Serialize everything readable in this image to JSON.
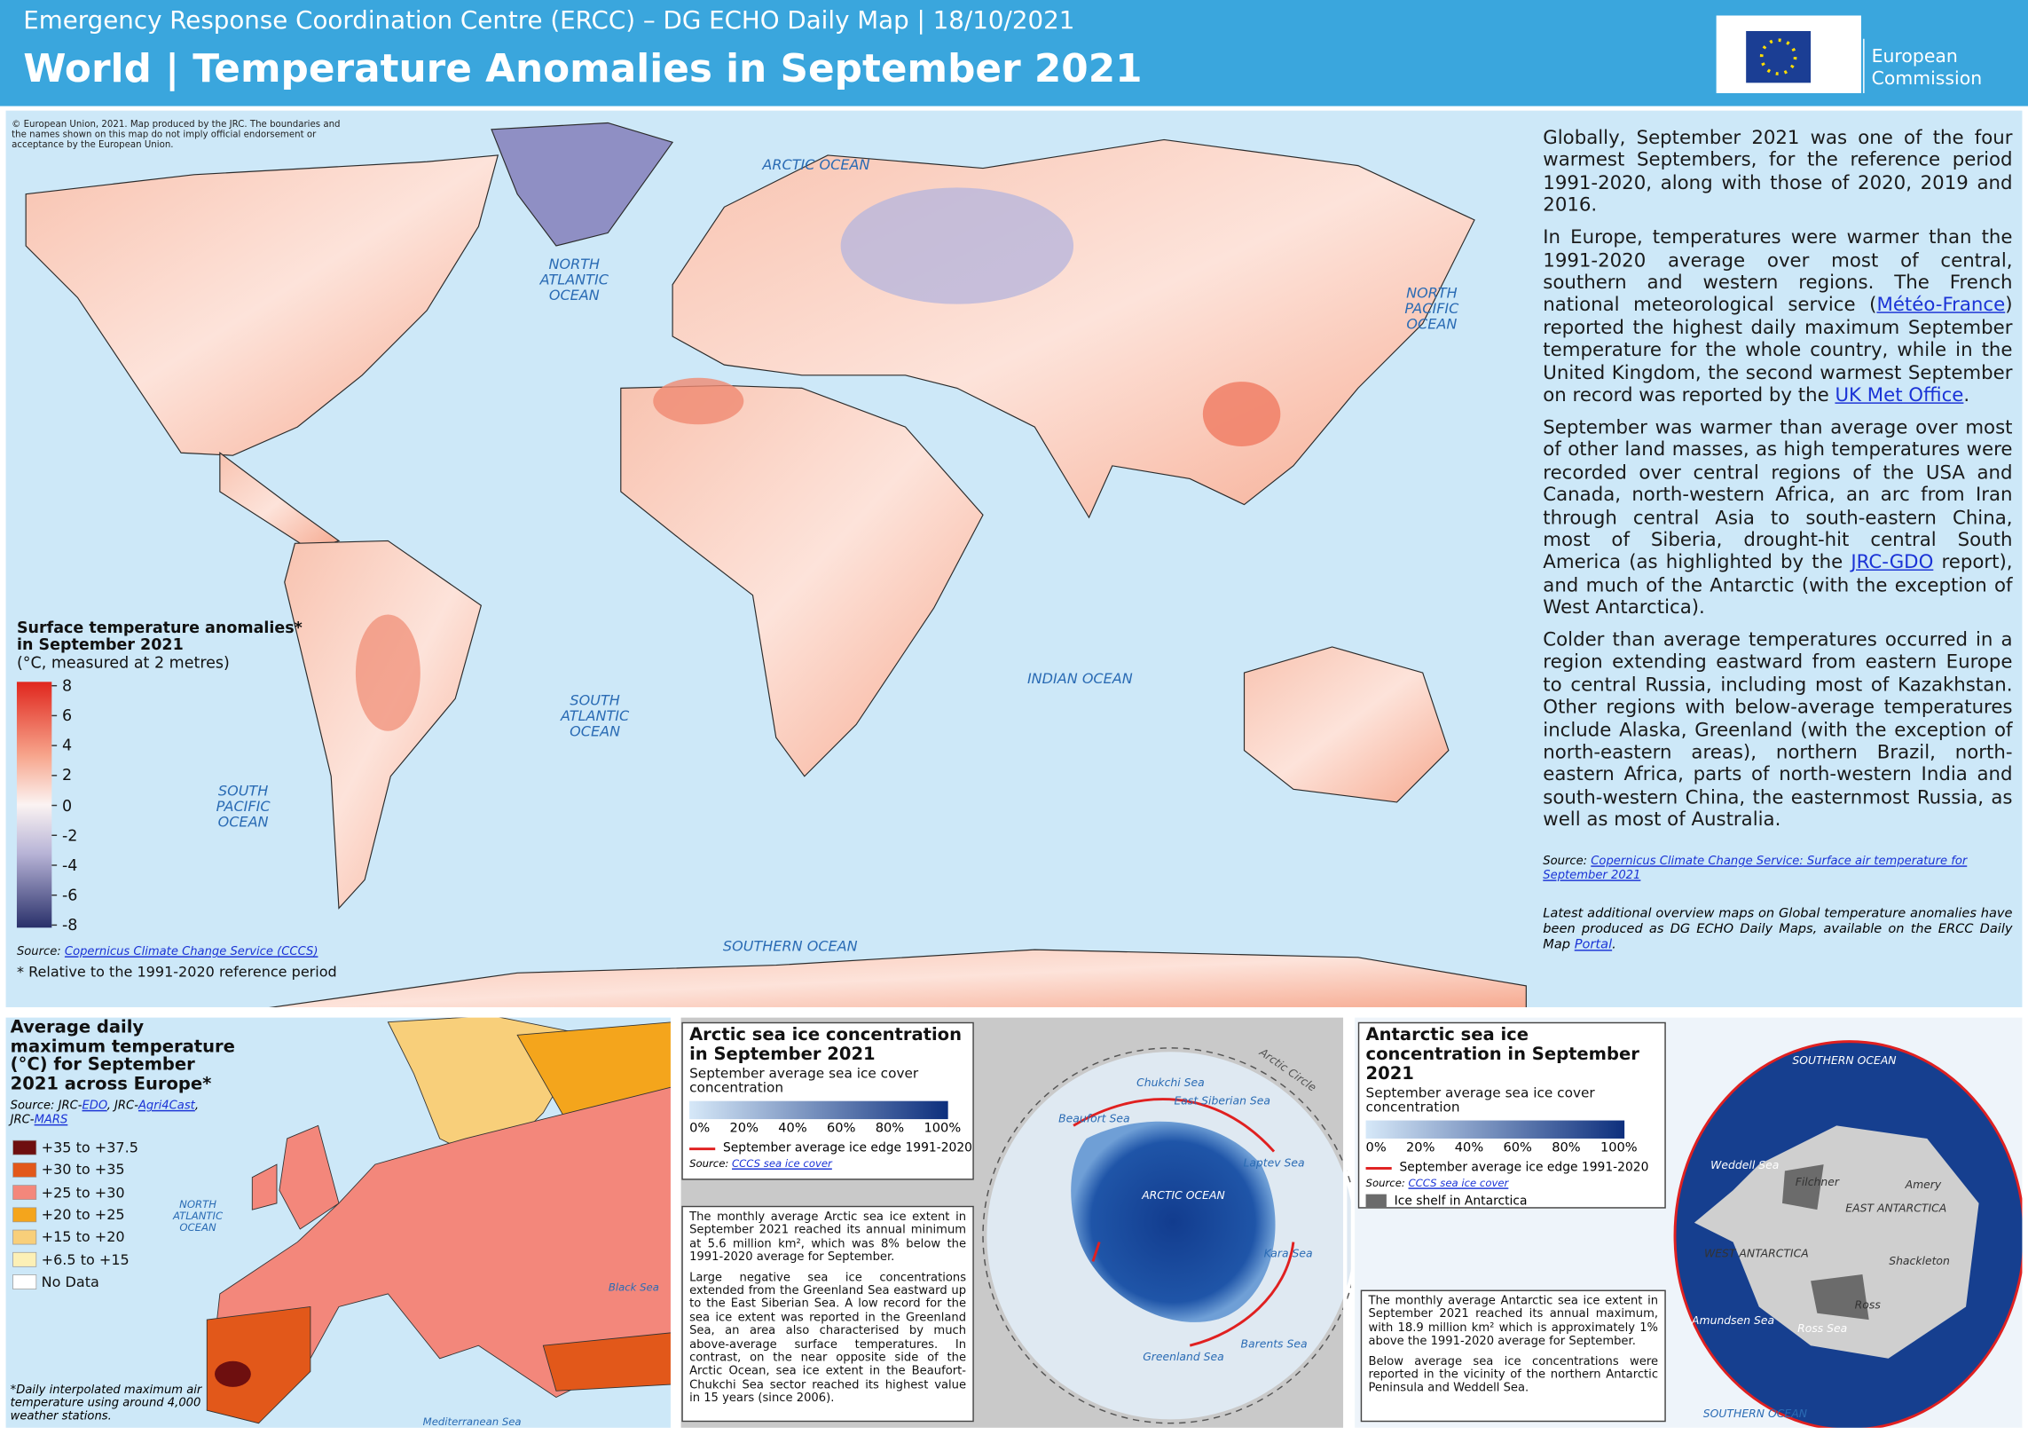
{
  "header": {
    "subtitle": "Emergency Response Coordination Centre (ERCC) – DG ECHO Daily Map | 18/10/2021",
    "title": "World | Temperature Anomalies in September 2021",
    "logo_text": "European Commission"
  },
  "main_map": {
    "copyright": "© European Union, 2021. Map produced by the JRC. The boundaries and the names shown on this map do not imply official endorsement or acceptance by the European Union.",
    "ocean_labels": [
      "ARCTIC OCEAN",
      "NORTH ATLANTIC OCEAN",
      "NORTH PACIFIC OCEAN",
      "SOUTH ATLANTIC OCEAN",
      "INDIAN OCEAN",
      "SOUTH PACIFIC OCEAN",
      "SOUTHERN OCEAN"
    ],
    "legend": {
      "title": "Surface temperature anomalies* in September 2021",
      "subtitle": "(°C, measured at 2 metres)",
      "ticks": [
        8,
        6,
        4,
        2,
        0,
        -2,
        -4,
        -6,
        -8
      ]
    },
    "source": [
      {
        "text": "Source: "
      },
      {
        "link": "Copernicus Climate Change Service (CCCS)"
      }
    ],
    "footnote": "* Relative to the 1991-2020 reference period"
  },
  "text_panel": {
    "paragraphs": [
      [
        {
          "text": "Globally, September 2021 was one of the four warmest Septembers, for the reference period 1991-2020, along with those of 2020, 2019 and 2016."
        }
      ],
      [
        {
          "text": "In Europe, temperatures were warmer than the 1991-2020 average over most of central, southern and western regions. The French national meteorological service ("
        },
        {
          "link": "Météo-France"
        },
        {
          "text": ") reported the highest daily maximum September temperature for the whole country, while in the United Kingdom, the second warmest September on record was reported by the "
        },
        {
          "link": "UK Met Office"
        },
        {
          "text": "."
        }
      ],
      [
        {
          "text": "September was warmer than average over most of other land masses, as high temperatures were recorded over central regions of the USA and Canada, north-western Africa, an arc from Iran through central Asia to south-eastern China, most of Siberia, drought-hit central South America (as highlighted by the "
        },
        {
          "link": "JRC-GDO"
        },
        {
          "text": " report), and much of the Antarctic (with the exception of West Antarctica)."
        }
      ],
      [
        {
          "text": "Colder than average temperatures occurred in a region extending eastward from eastern Europe to central Russia, including most of Kazakhstan. Other regions with below-average temperatures include Alaska, Greenland (with the exception of north-eastern areas), northern Brazil, north-eastern Africa, parts of north-western India and south-western China, the easternmost Russia, as well as most of Australia."
        }
      ]
    ],
    "source": [
      {
        "text": "Source: "
      },
      {
        "link": "Copernicus Climate Change Service: Surface air temperature for September 2021"
      }
    ],
    "note": [
      {
        "text": "Latest additional overview maps on Global temperature anomalies have been produced as DG ECHO Daily Maps, available on the ERCC Daily Map "
      },
      {
        "link": "Portal"
      },
      {
        "text": "."
      }
    ]
  },
  "europe_panel": {
    "title": "Average daily maximum temperature (°C) for September 2021 across Europe*",
    "source": [
      {
        "text": "Source: JRC-"
      },
      {
        "link": "EDO"
      },
      {
        "text": ", JRC-"
      },
      {
        "link": "Agri4Cast"
      },
      {
        "text": ", JRC-"
      },
      {
        "link": "MARS"
      }
    ],
    "legend": [
      {
        "label": "+35 to +37.5",
        "color": "#6e0f0f"
      },
      {
        "label": "+30 to +35",
        "color": "#e2581a"
      },
      {
        "label": "+25 to +30",
        "color": "#f3877b"
      },
      {
        "label": "+20 to +25",
        "color": "#f4a51c"
      },
      {
        "label": "+15 to +20",
        "color": "#f8cf7a"
      },
      {
        "label": "+6.5 to +15",
        "color": "#fcf0b6"
      },
      {
        "label": "No Data",
        "color": "#ffffff"
      }
    ],
    "footnote": "*Daily interpolated maximum air temperature using around 4,000 weather stations.",
    "sea_labels": [
      "NORTH ATLANTIC OCEAN",
      "Black Sea",
      "Mediterranean Sea"
    ]
  },
  "arctic_panel": {
    "title": "Arctic sea ice concentration in September 2021",
    "subtitle": "September average sea ice cover concentration",
    "scale_labels": [
      "0%",
      "20%",
      "40%",
      "60%",
      "80%",
      "100%"
    ],
    "edge_label": "September average ice edge 1991-2020",
    "source": [
      {
        "text": "Source: "
      },
      {
        "link": "CCCS sea ice cover"
      }
    ],
    "paragraphs": [
      [
        {
          "text": "The monthly average Arctic sea ice extent in September 2021 reached its annual minimum at 5.6 million km², which was 8% below the 1991-2020 average for September."
        }
      ],
      [
        {
          "text": "Large negative sea ice concentrations extended from the Greenland Sea eastward up to the East Siberian Sea. A low record for the sea ice extent was reported in the Greenland Sea, an area also characterised by much above-average surface temperatures. In contrast, on the near opposite side of the Arctic Ocean, sea ice extent in the Beaufort-Chukchi Sea sector reached its highest value in 15 years (since 2006)."
        }
      ]
    ],
    "map_labels": [
      "Chukchi Sea",
      "East Siberian Sea",
      "Laptev Sea",
      "Kara Sea",
      "Barents Sea",
      "Greenland Sea",
      "Beaufort Sea",
      "ARCTIC OCEAN",
      "Arctic Circle"
    ]
  },
  "antarctic_panel": {
    "title": "Antarctic sea ice concentration in September 2021",
    "subtitle": "September average sea ice cover concentration",
    "scale_labels": [
      "0%",
      "20%",
      "40%",
      "60%",
      "80%",
      "100%"
    ],
    "edge_label": "September average ice edge 1991-2020",
    "source": [
      {
        "text": "Source: "
      },
      {
        "link": "CCCS sea ice cover"
      }
    ],
    "shelf_label": "Ice shelf in Antarctica",
    "paragraphs": [
      [
        {
          "text": "The monthly average Antarctic sea ice extent in September 2021 reached its annual maximum, with 18.9 million km² which is approximately 1% above the 1991-2020 average for September."
        }
      ],
      [
        {
          "text": "Below average sea ice concentrations were reported in the vicinity of the northern Antarctic Peninsula and Weddell Sea."
        }
      ]
    ],
    "map_labels": [
      "SOUTHERN OCEAN",
      "SOUTHERN OCEAN",
      "Weddell Sea",
      "Filchner",
      "Amery",
      "EAST ANTARCTICA",
      "WEST ANTARCTICA",
      "Shackleton",
      "Amundsen Sea",
      "Ross",
      "Ross Sea"
    ]
  }
}
